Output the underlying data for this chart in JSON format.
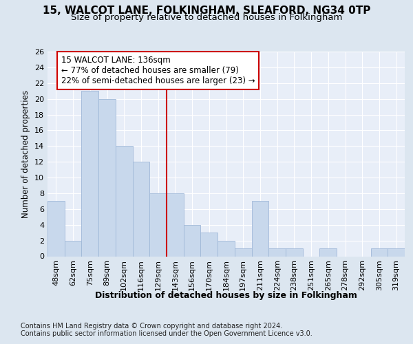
{
  "title1": "15, WALCOT LANE, FOLKINGHAM, SLEAFORD, NG34 0TP",
  "title2": "Size of property relative to detached houses in Folkingham",
  "xlabel": "Distribution of detached houses by size in Folkingham",
  "ylabel": "Number of detached properties",
  "bins": [
    "48sqm",
    "62sqm",
    "75sqm",
    "89sqm",
    "102sqm",
    "116sqm",
    "129sqm",
    "143sqm",
    "156sqm",
    "170sqm",
    "184sqm",
    "197sqm",
    "211sqm",
    "224sqm",
    "238sqm",
    "251sqm",
    "265sqm",
    "278sqm",
    "292sqm",
    "305sqm",
    "319sqm"
  ],
  "values": [
    7,
    2,
    21,
    20,
    14,
    12,
    8,
    8,
    4,
    3,
    2,
    1,
    7,
    1,
    1,
    0,
    1,
    0,
    0,
    1,
    1
  ],
  "bar_color": "#c8d8ec",
  "bar_edge_color": "#a0b8d8",
  "vline_x_idx": 6.5,
  "vline_color": "#cc0000",
  "annotation_line1": "15 WALCOT LANE: 136sqm",
  "annotation_line2": "← 77% of detached houses are smaller (79)",
  "annotation_line3": "22% of semi-detached houses are larger (23) →",
  "annotation_box_color": "#ffffff",
  "annotation_box_edge": "#cc0000",
  "ylim": [
    0,
    26
  ],
  "yticks": [
    0,
    2,
    4,
    6,
    8,
    10,
    12,
    14,
    16,
    18,
    20,
    22,
    24,
    26
  ],
  "footer1": "Contains HM Land Registry data © Crown copyright and database right 2024.",
  "footer2": "Contains public sector information licensed under the Open Government Licence v3.0.",
  "bg_color": "#dce6f0",
  "plot_bg_color": "#e8eef8",
  "grid_color": "#ffffff",
  "title1_fontsize": 11,
  "title2_fontsize": 9.5,
  "xlabel_fontsize": 9,
  "ylabel_fontsize": 8.5,
  "tick_fontsize": 8,
  "footer_fontsize": 7,
  "annotation_fontsize": 8.5
}
